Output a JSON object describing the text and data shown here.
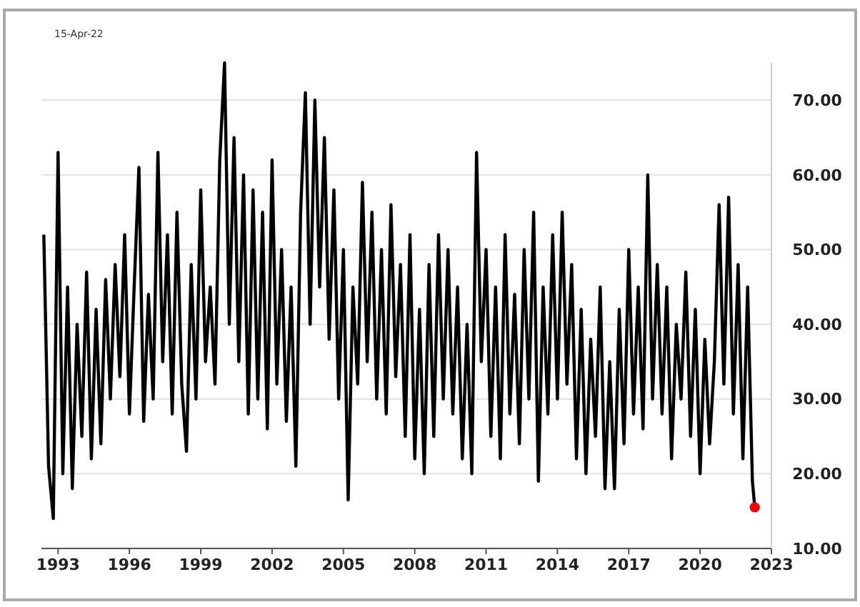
{
  "chart_data": {
    "type": "line",
    "annotations": [
      "15-Apr-22"
    ],
    "xlim": [
      1992.3,
      2023
    ],
    "xticks": [
      1993,
      1996,
      1999,
      2002,
      2005,
      2008,
      2011,
      2014,
      2017,
      2020,
      2023
    ],
    "ylim": [
      10,
      75
    ],
    "yticks": [
      {
        "value": 10,
        "label": "10.00"
      },
      {
        "value": 20,
        "label": "20.00"
      },
      {
        "value": 30,
        "label": "30.00"
      },
      {
        "value": 40,
        "label": "40.00"
      },
      {
        "value": 50,
        "label": "50.00"
      },
      {
        "value": 60,
        "label": "60.00"
      },
      {
        "value": 70,
        "label": "70.00"
      }
    ],
    "grid": "y",
    "line_style": "solid",
    "marker": "none",
    "series": [
      {
        "color": "#000000",
        "x": [
          1992.4,
          1992.6,
          1992.8,
          1993.0,
          1993.2,
          1993.4,
          1993.6,
          1993.8,
          1994.0,
          1994.2,
          1994.4,
          1994.6,
          1994.8,
          1995.0,
          1995.2,
          1995.4,
          1995.6,
          1995.8,
          1996.0,
          1996.2,
          1996.4,
          1996.6,
          1996.8,
          1997.0,
          1997.2,
          1997.4,
          1997.6,
          1997.8,
          1998.0,
          1998.2,
          1998.4,
          1998.6,
          1998.8,
          1999.0,
          1999.2,
          1999.4,
          1999.6,
          1999.8,
          2000.0,
          2000.2,
          2000.4,
          2000.6,
          2000.8,
          2001.0,
          2001.2,
          2001.4,
          2001.6,
          2001.8,
          2002.0,
          2002.2,
          2002.4,
          2002.6,
          2002.8,
          2003.0,
          2003.2,
          2003.4,
          2003.6,
          2003.8,
          2004.0,
          2004.2,
          2004.4,
          2004.6,
          2004.8,
          2005.0,
          2005.2,
          2005.4,
          2005.6,
          2005.8,
          2006.0,
          2006.2,
          2006.4,
          2006.6,
          2006.8,
          2007.0,
          2007.2,
          2007.4,
          2007.6,
          2007.8,
          2008.0,
          2008.2,
          2008.4,
          2008.6,
          2008.8,
          2009.0,
          2009.2,
          2009.4,
          2009.6,
          2009.8,
          2010.0,
          2010.2,
          2010.4,
          2010.6,
          2010.8,
          2011.0,
          2011.2,
          2011.4,
          2011.6,
          2011.8,
          2012.0,
          2012.2,
          2012.4,
          2012.6,
          2012.8,
          2013.0,
          2013.2,
          2013.4,
          2013.6,
          2013.8,
          2014.0,
          2014.2,
          2014.4,
          2014.6,
          2014.8,
          2015.0,
          2015.2,
          2015.4,
          2015.6,
          2015.8,
          2016.0,
          2016.2,
          2016.4,
          2016.6,
          2016.8,
          2017.0,
          2017.2,
          2017.4,
          2017.6,
          2017.8,
          2018.0,
          2018.2,
          2018.4,
          2018.6,
          2018.8,
          2019.0,
          2019.2,
          2019.4,
          2019.6,
          2019.8,
          2020.0,
          2020.2,
          2020.4,
          2020.6,
          2020.8,
          2021.0,
          2021.2,
          2021.4,
          2021.6,
          2021.8,
          2022.0,
          2022.2,
          2022.3
        ],
        "values": [
          52,
          21,
          14,
          63,
          20,
          45,
          18,
          40,
          25,
          47,
          22,
          42,
          24,
          46,
          30,
          48,
          33,
          52,
          28,
          45,
          61,
          27,
          44,
          30,
          63,
          35,
          52,
          28,
          55,
          32,
          23,
          48,
          30,
          58,
          35,
          45,
          32,
          62,
          75,
          40,
          65,
          35,
          60,
          28,
          58,
          30,
          55,
          26,
          62,
          32,
          50,
          27,
          45,
          21,
          55,
          71,
          40,
          70,
          45,
          65,
          38,
          58,
          30,
          50,
          16.5,
          45,
          32,
          59,
          35,
          55,
          30,
          50,
          28,
          56,
          33,
          48,
          25,
          52,
          22,
          42,
          20,
          48,
          25,
          52,
          30,
          50,
          28,
          45,
          22,
          40,
          20,
          63,
          35,
          50,
          25,
          45,
          22,
          52,
          28,
          44,
          24,
          50,
          30,
          55,
          19,
          45,
          28,
          52,
          30,
          55,
          32,
          48,
          22,
          42,
          20,
          38,
          25,
          45,
          18,
          35,
          18,
          42,
          24,
          50,
          28,
          45,
          26,
          60,
          30,
          48,
          28,
          45,
          22,
          40,
          30,
          47,
          25,
          42,
          20,
          38,
          24,
          35,
          56,
          32,
          57,
          28,
          48,
          22,
          45,
          19,
          15.5
        ]
      },
      {
        "type": "scatter",
        "color": "#ff0000",
        "marker": "circle",
        "x": [
          2022.3
        ],
        "values": [
          15.5
        ]
      }
    ]
  }
}
